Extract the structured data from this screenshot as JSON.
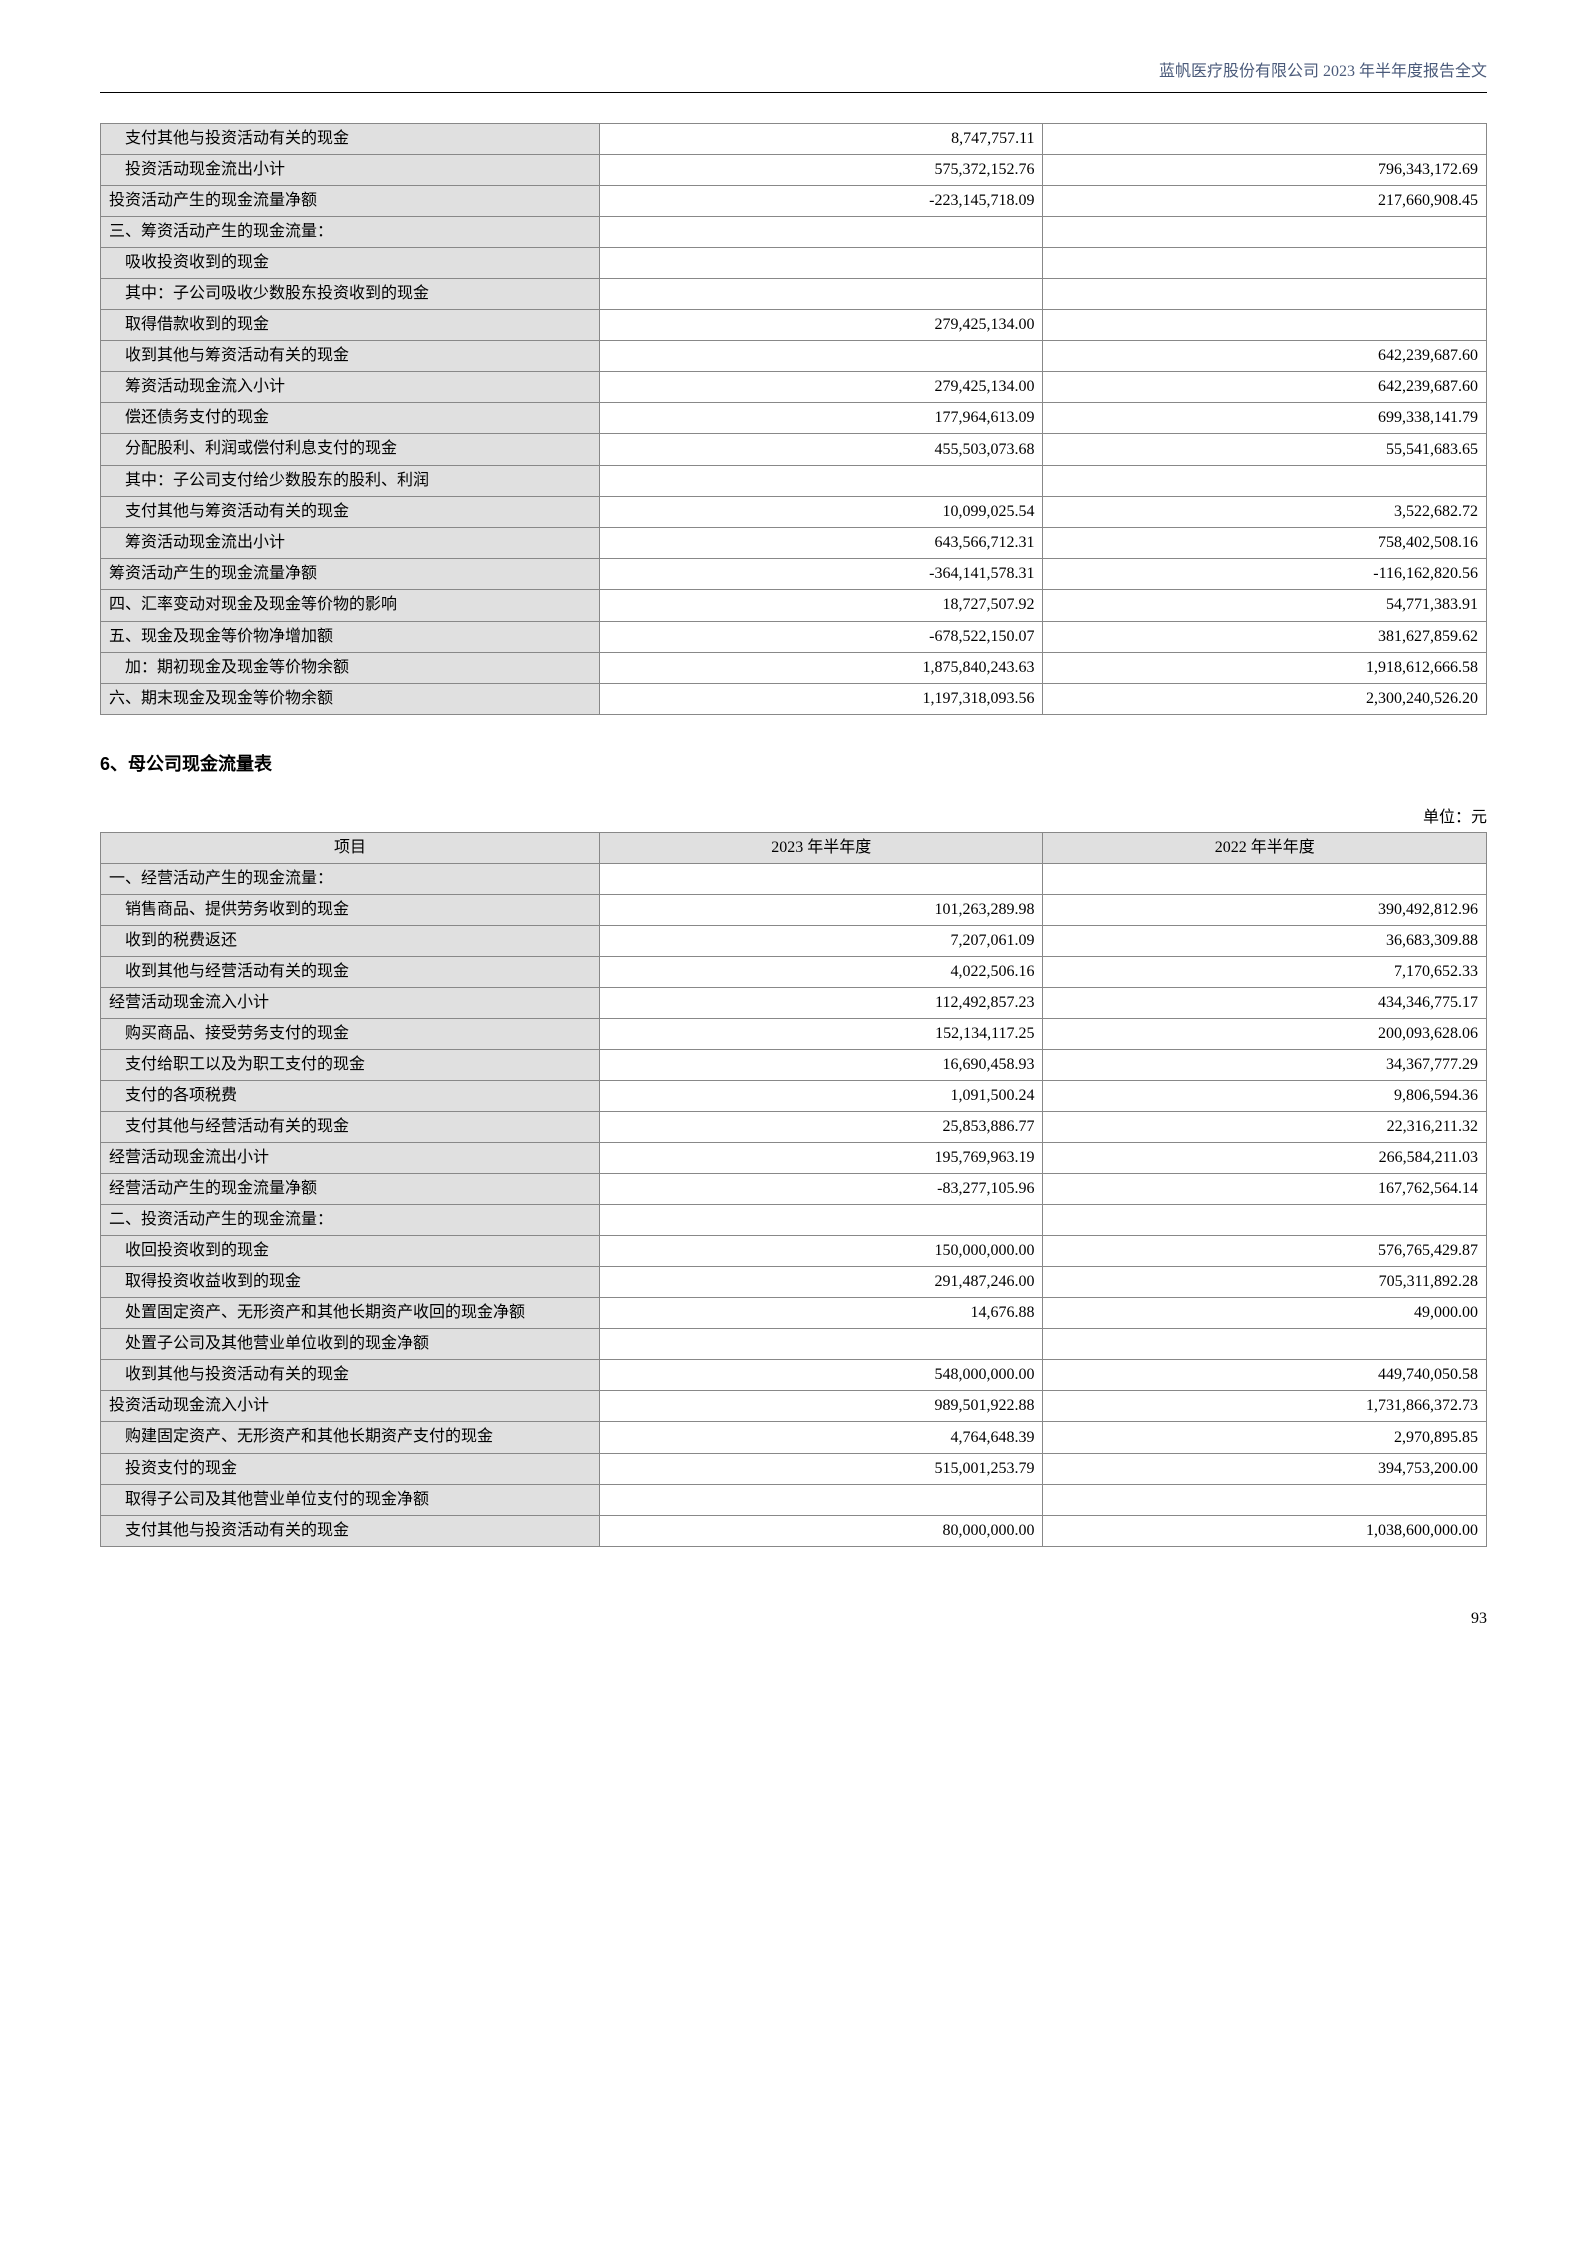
{
  "header": "蓝帆医疗股份有限公司 2023 年半年度报告全文",
  "pageNumber": "93",
  "table1": {
    "rows": [
      {
        "label": "　支付其他与投资活动有关的现金",
        "v1": "8,747,757.11",
        "v2": ""
      },
      {
        "label": "　投资活动现金流出小计",
        "v1": "575,372,152.76",
        "v2": "796,343,172.69"
      },
      {
        "label": "投资活动产生的现金流量净额",
        "v1": "-223,145,718.09",
        "v2": "217,660,908.45"
      },
      {
        "label": "三、筹资活动产生的现金流量：",
        "v1": "",
        "v2": ""
      },
      {
        "label": "　吸收投资收到的现金",
        "v1": "",
        "v2": ""
      },
      {
        "label": "　其中：子公司吸收少数股东投资收到的现金",
        "v1": "",
        "v2": "",
        "multi": true
      },
      {
        "label": "　取得借款收到的现金",
        "v1": "279,425,134.00",
        "v2": ""
      },
      {
        "label": "　收到其他与筹资活动有关的现金",
        "v1": "",
        "v2": "642,239,687.60"
      },
      {
        "label": "　筹资活动现金流入小计",
        "v1": "279,425,134.00",
        "v2": "642,239,687.60"
      },
      {
        "label": "　偿还债务支付的现金",
        "v1": "177,964,613.09",
        "v2": "699,338,141.79"
      },
      {
        "label": "　分配股利、利润或偿付利息支付的现金",
        "v1": "455,503,073.68",
        "v2": "55,541,683.65",
        "multi": true
      },
      {
        "label": "　其中：子公司支付给少数股东的股利、利润",
        "v1": "",
        "v2": "",
        "multi": true
      },
      {
        "label": "　支付其他与筹资活动有关的现金",
        "v1": "10,099,025.54",
        "v2": "3,522,682.72"
      },
      {
        "label": "　筹资活动现金流出小计",
        "v1": "643,566,712.31",
        "v2": "758,402,508.16"
      },
      {
        "label": "筹资活动产生的现金流量净额",
        "v1": "-364,141,578.31",
        "v2": "-116,162,820.56"
      },
      {
        "label": "四、汇率变动对现金及现金等价物的影响",
        "v1": "18,727,507.92",
        "v2": "54,771,383.91",
        "multi": true
      },
      {
        "label": "五、现金及现金等价物净增加额",
        "v1": "-678,522,150.07",
        "v2": "381,627,859.62"
      },
      {
        "label": "　加：期初现金及现金等价物余额",
        "v1": "1,875,840,243.63",
        "v2": "1,918,612,666.58"
      },
      {
        "label": "六、期末现金及现金等价物余额",
        "v1": "1,197,318,093.56",
        "v2": "2,300,240,526.20"
      }
    ]
  },
  "sectionTitle": "6、母公司现金流量表",
  "unitLabel": "单位：元",
  "table2": {
    "headers": {
      "c0": "项目",
      "c1": "2023 年半年度",
      "c2": "2022 年半年度"
    },
    "rows": [
      {
        "label": "一、经营活动产生的现金流量：",
        "v1": "",
        "v2": ""
      },
      {
        "label": "　销售商品、提供劳务收到的现金",
        "v1": "101,263,289.98",
        "v2": "390,492,812.96"
      },
      {
        "label": "　收到的税费返还",
        "v1": "7,207,061.09",
        "v2": "36,683,309.88"
      },
      {
        "label": "　收到其他与经营活动有关的现金",
        "v1": "4,022,506.16",
        "v2": "7,170,652.33"
      },
      {
        "label": "经营活动现金流入小计",
        "v1": "112,492,857.23",
        "v2": "434,346,775.17"
      },
      {
        "label": "　购买商品、接受劳务支付的现金",
        "v1": "152,134,117.25",
        "v2": "200,093,628.06"
      },
      {
        "label": "　支付给职工以及为职工支付的现金",
        "v1": "16,690,458.93",
        "v2": "34,367,777.29"
      },
      {
        "label": "　支付的各项税费",
        "v1": "1,091,500.24",
        "v2": "9,806,594.36"
      },
      {
        "label": "　支付其他与经营活动有关的现金",
        "v1": "25,853,886.77",
        "v2": "22,316,211.32"
      },
      {
        "label": "经营活动现金流出小计",
        "v1": "195,769,963.19",
        "v2": "266,584,211.03"
      },
      {
        "label": "经营活动产生的现金流量净额",
        "v1": "-83,277,105.96",
        "v2": "167,762,564.14"
      },
      {
        "label": "二、投资活动产生的现金流量：",
        "v1": "",
        "v2": ""
      },
      {
        "label": "　收回投资收到的现金",
        "v1": "150,000,000.00",
        "v2": "576,765,429.87"
      },
      {
        "label": "　取得投资收益收到的现金",
        "v1": "291,487,246.00",
        "v2": "705,311,892.28"
      },
      {
        "label": "　处置固定资产、无形资产和其他长期资产收回的现金净额",
        "v1": "14,676.88",
        "v2": "49,000.00",
        "multi": true
      },
      {
        "label": "　处置子公司及其他营业单位收到的现金净额",
        "v1": "",
        "v2": "",
        "multi": true
      },
      {
        "label": "　收到其他与投资活动有关的现金",
        "v1": "548,000,000.00",
        "v2": "449,740,050.58"
      },
      {
        "label": "投资活动现金流入小计",
        "v1": "989,501,922.88",
        "v2": "1,731,866,372.73"
      },
      {
        "label": "　购建固定资产、无形资产和其他长期资产支付的现金",
        "v1": "4,764,648.39",
        "v2": "2,970,895.85",
        "multi": true
      },
      {
        "label": "　投资支付的现金",
        "v1": "515,001,253.79",
        "v2": "394,753,200.00"
      },
      {
        "label": "　取得子公司及其他营业单位支付的现金净额",
        "v1": "",
        "v2": "",
        "multi": true
      },
      {
        "label": "　支付其他与投资活动有关的现金",
        "v1": "80,000,000.00",
        "v2": "1,038,600,000.00"
      }
    ]
  }
}
